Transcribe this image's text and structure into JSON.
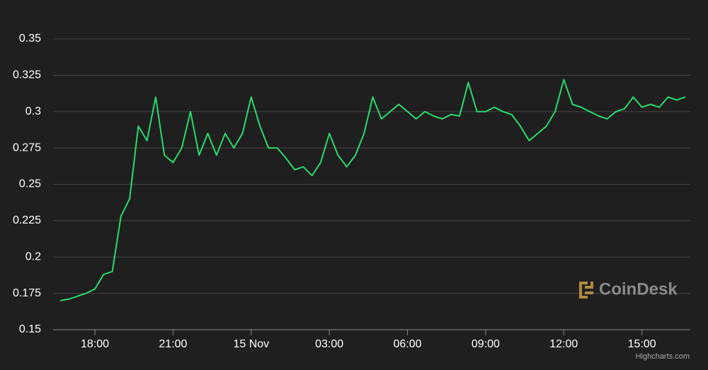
{
  "chart_data": {
    "type": "line",
    "categories": [
      null,
      null,
      null,
      null,
      "18:00",
      null,
      null,
      null,
      null,
      null,
      null,
      null,
      null,
      "21:00",
      null,
      null,
      null,
      null,
      null,
      null,
      null,
      null,
      "15 Nov",
      null,
      null,
      null,
      null,
      null,
      null,
      null,
      null,
      "03:00",
      null,
      null,
      null,
      null,
      null,
      null,
      null,
      null,
      "06:00",
      null,
      null,
      null,
      null,
      null,
      null,
      null,
      null,
      "09:00",
      null,
      null,
      null,
      null,
      null,
      null,
      null,
      null,
      "12:00",
      null,
      null,
      null,
      null,
      null,
      null,
      null,
      null,
      "15:00",
      null,
      null,
      null,
      null,
      null
    ],
    "values": [
      0.17,
      0.171,
      0.173,
      0.175,
      0.178,
      0.188,
      0.19,
      0.228,
      0.24,
      0.29,
      0.28,
      0.31,
      0.27,
      0.265,
      0.275,
      0.3,
      0.27,
      0.285,
      0.27,
      0.285,
      0.275,
      0.285,
      0.31,
      0.29,
      0.275,
      0.275,
      0.268,
      0.26,
      0.262,
      0.256,
      0.265,
      0.285,
      0.27,
      0.262,
      0.27,
      0.285,
      0.31,
      0.295,
      0.3,
      0.305,
      0.3,
      0.295,
      0.3,
      0.297,
      0.295,
      0.298,
      0.297,
      0.32,
      0.3,
      0.3,
      0.303,
      0.3,
      0.298,
      0.29,
      0.28,
      0.285,
      0.29,
      0.3,
      0.322,
      0.305,
      0.303,
      0.3,
      0.297,
      0.295,
      0.3,
      0.302,
      0.31,
      0.303,
      0.305,
      0.303,
      0.31,
      0.308,
      0.31
    ],
    "color": "#2bd96f",
    "ylim": [
      0.15,
      0.35
    ],
    "yticks": [
      0.15,
      0.175,
      0.2,
      0.225,
      0.25,
      0.275,
      0.3,
      0.325,
      0.35
    ],
    "grid": true,
    "watermark": "CoinDesk",
    "credits": "Highcharts.com"
  }
}
